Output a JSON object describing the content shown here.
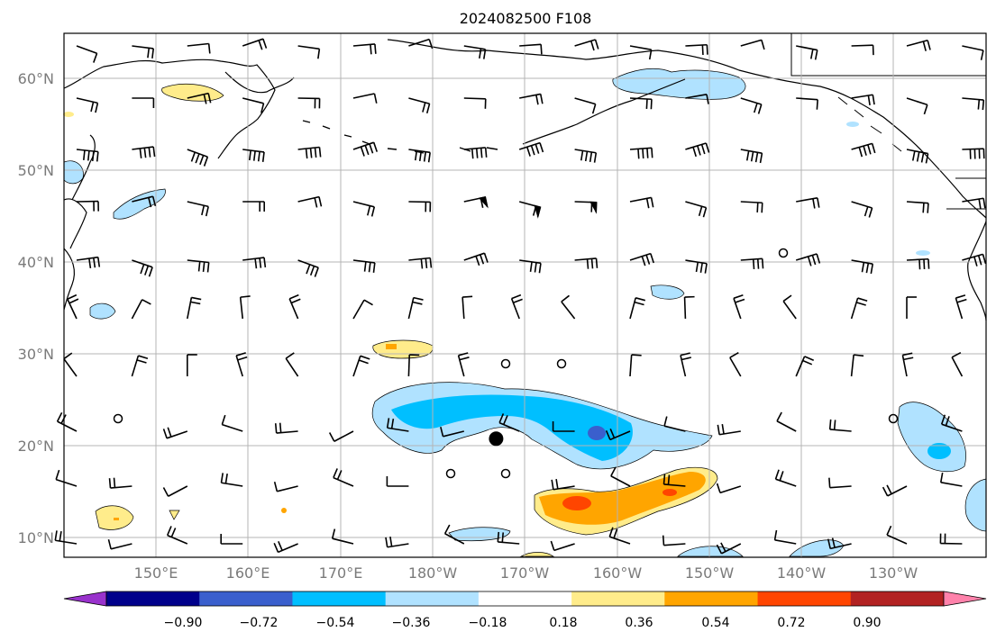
{
  "title": "2024082500 F108",
  "map": {
    "lat_range_deg": [
      8,
      65
    ],
    "lon_range_deg_east": [
      140,
      242
    ],
    "lat_ticks": [
      "60°N",
      "50°N",
      "40°N",
      "30°N",
      "20°N",
      "10°N"
    ],
    "lon_ticks": [
      "150°E",
      "160°E",
      "170°E",
      "180°W",
      "170°W",
      "160°W",
      "150°W",
      "140°W",
      "130°W"
    ],
    "grid": true,
    "coastline_color": "#000000",
    "marker": {
      "type": "filled-circle",
      "lat": 20.9,
      "lon_deg_east": -172.2
    }
  },
  "colorbar": {
    "orientation": "horizontal",
    "extend": "both",
    "labels": [
      "−0.90",
      "−0.72",
      "−0.54",
      "−0.36",
      "−0.18",
      "0.18",
      "0.36",
      "0.54",
      "0.72",
      "0.90"
    ],
    "colors": [
      "#9932cc",
      "#00008b",
      "#3a5fcd",
      "#00bfff",
      "#b0e2ff",
      "#ffffff",
      "#ffec8b",
      "#ffa500",
      "#ff4500",
      "#b22222",
      "#ff82ab"
    ]
  }
}
